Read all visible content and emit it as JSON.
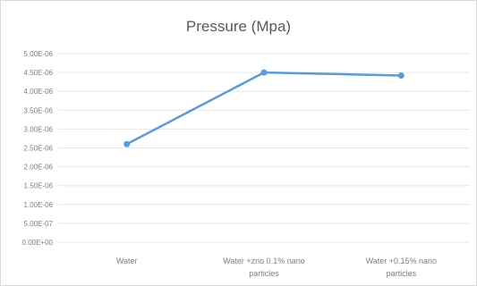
{
  "chart_data": {
    "type": "line",
    "title": "Pressure (Mpa)",
    "categories": [
      [
        "Water"
      ],
      [
        "Water +zno 0.1% nano",
        "particles"
      ],
      [
        "Water +0.15% nano",
        "particles"
      ]
    ],
    "series": [
      {
        "values": [
          2.6e-06,
          4.5e-06,
          4.42e-06
        ]
      }
    ],
    "yticks": [
      "0.00E+00",
      "5.00E-07",
      "1.00E-06",
      "1.50E-06",
      "2.00E-06",
      "2.50E-06",
      "3.00E-06",
      "3.50E-06",
      "4.00E-06",
      "4.50E-06",
      "5.00E-06"
    ],
    "ylim": [
      0,
      5e-06
    ],
    "grid": true,
    "legend": "none",
    "colors": {
      "line": "#5b9bd5",
      "grid": "#e6e6e6",
      "text": "#7f7f7f"
    }
  }
}
